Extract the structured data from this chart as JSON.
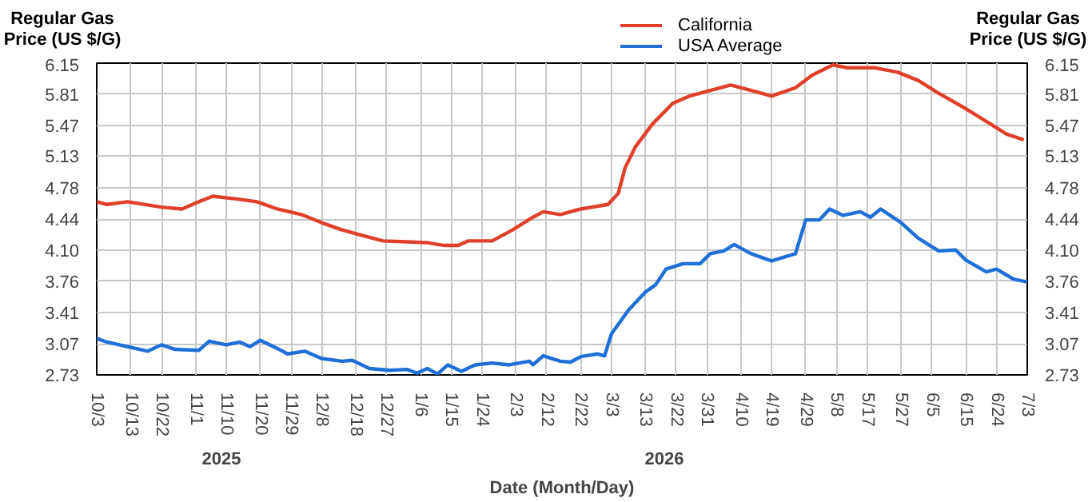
{
  "chart_data": {
    "type": "line",
    "xlabel": "Date (Month/Day)",
    "ylabel": "Regular Gas Price (US $/G)",
    "y2label": "Regular Gas Price (US $/G)",
    "annotations": [
      "2025",
      "2026"
    ],
    "xlim": [
      "2025-10-03",
      "2026-07-03"
    ],
    "xticks": [
      {
        "value": "2025-10-03",
        "label": "10/3"
      },
      {
        "value": "2025-10-13",
        "label": "10/13"
      },
      {
        "value": "2025-10-22",
        "label": "10/22"
      },
      {
        "value": "2025-11-01",
        "label": "11/1"
      },
      {
        "value": "2025-11-10",
        "label": "11/10"
      },
      {
        "value": "2025-11-20",
        "label": "11/20"
      },
      {
        "value": "2025-11-29",
        "label": "11/29"
      },
      {
        "value": "2025-12-08",
        "label": "12/8"
      },
      {
        "value": "2025-12-18",
        "label": "12/18"
      },
      {
        "value": "2025-12-27",
        "label": "12/27"
      },
      {
        "value": "2026-01-06",
        "label": "1/6"
      },
      {
        "value": "2026-01-15",
        "label": "1/15"
      },
      {
        "value": "2026-01-24",
        "label": "1/24"
      },
      {
        "value": "2026-02-03",
        "label": "2/3"
      },
      {
        "value": "2026-02-12",
        "label": "2/12"
      },
      {
        "value": "2026-02-22",
        "label": "2/22"
      },
      {
        "value": "2026-03-03",
        "label": "3/3"
      },
      {
        "value": "2026-03-13",
        "label": "3/13"
      },
      {
        "value": "2026-03-22",
        "label": "3/22"
      },
      {
        "value": "2026-03-31",
        "label": "3/31"
      },
      {
        "value": "2026-04-10",
        "label": "4/10"
      },
      {
        "value": "2026-04-19",
        "label": "4/19"
      },
      {
        "value": "2026-04-29",
        "label": "4/29"
      },
      {
        "value": "2026-05-08",
        "label": "5/8"
      },
      {
        "value": "2026-05-17",
        "label": "5/17"
      },
      {
        "value": "2026-05-27",
        "label": "5/27"
      },
      {
        "value": "2026-06-05",
        "label": "6/5"
      },
      {
        "value": "2026-06-15",
        "label": "6/15"
      },
      {
        "value": "2026-06-24",
        "label": "6/24"
      },
      {
        "value": "2026-07-03",
        "label": "7/3"
      }
    ],
    "ylim": [
      2.73,
      6.15
    ],
    "yticks": [
      2.73,
      3.07,
      3.41,
      3.76,
      {
        "value": 4.1,
        "label": "4.10"
      },
      4.44,
      4.78,
      5.13,
      5.47,
      5.81,
      6.15
    ],
    "y2lim": [
      2.73,
      6.15
    ],
    "y2ticks": [
      2.73,
      3.07,
      3.41,
      3.76,
      {
        "value": 4.1,
        "label": "4.10"
      },
      4.44,
      4.78,
      5.13,
      5.47,
      5.81,
      6.15
    ],
    "grid": true,
    "legend": "top",
    "marker": "none",
    "line_style": "solid",
    "series": [
      {
        "name": "California",
        "color": "#e0402a",
        "x": [
          "2025-10-03",
          "2025-10-06",
          "2025-10-12",
          "2025-10-22",
          "2025-10-28",
          "2025-11-02",
          "2025-11-06",
          "2025-11-13",
          "2025-11-19",
          "2025-11-25",
          "2025-12-02",
          "2025-12-08",
          "2025-12-14",
          "2025-12-20",
          "2025-12-26",
          "2026-01-02",
          "2026-01-08",
          "2026-01-13",
          "2026-01-17",
          "2026-01-20",
          "2026-01-27",
          "2026-02-02",
          "2026-02-08",
          "2026-02-11",
          "2026-02-16",
          "2026-02-22",
          "2026-03-02",
          "2026-03-05",
          "2026-03-07",
          "2026-03-10",
          "2026-03-15",
          "2026-03-21",
          "2026-03-26",
          "2026-04-01",
          "2026-04-07",
          "2026-04-13",
          "2026-04-19",
          "2026-04-26",
          "2026-05-01",
          "2026-05-07",
          "2026-05-11",
          "2026-05-19",
          "2026-05-26",
          "2026-06-01",
          "2026-06-07",
          "2026-06-15",
          "2026-06-21",
          "2026-06-27",
          "2026-07-02"
        ],
        "values": [
          4.63,
          4.6,
          4.63,
          4.57,
          4.55,
          4.63,
          4.69,
          4.66,
          4.63,
          4.55,
          4.49,
          4.4,
          4.32,
          4.26,
          4.2,
          4.19,
          4.18,
          4.15,
          4.15,
          4.2,
          4.2,
          4.32,
          4.46,
          4.52,
          4.49,
          4.55,
          4.6,
          4.72,
          5.0,
          5.23,
          5.48,
          5.71,
          5.79,
          5.85,
          5.91,
          5.85,
          5.79,
          5.88,
          6.02,
          6.13,
          6.1,
          6.1,
          6.05,
          5.96,
          5.82,
          5.65,
          5.51,
          5.37,
          5.31
        ]
      },
      {
        "name": "USA Average",
        "color": "#1f6fd6",
        "x": [
          "2025-10-03",
          "2025-10-06",
          "2025-10-12",
          "2025-10-18",
          "2025-10-22",
          "2025-10-26",
          "2025-11-02",
          "2025-11-05",
          "2025-11-10",
          "2025-11-14",
          "2025-11-17",
          "2025-11-20",
          "2025-11-25",
          "2025-11-28",
          "2025-12-03",
          "2025-12-08",
          "2025-12-14",
          "2025-12-17",
          "2025-12-22",
          "2025-12-28",
          "2026-01-02",
          "2026-01-05",
          "2026-01-08",
          "2026-01-11",
          "2026-01-14",
          "2026-01-18",
          "2026-01-22",
          "2026-01-27",
          "2026-02-01",
          "2026-02-07",
          "2026-02-08",
          "2026-02-11",
          "2026-02-16",
          "2026-02-19",
          "2026-02-22",
          "2026-02-27",
          "2026-03-01",
          "2026-03-03",
          "2026-03-08",
          "2026-03-13",
          "2026-03-16",
          "2026-03-19",
          "2026-03-24",
          "2026-03-29",
          "2026-04-01",
          "2026-04-05",
          "2026-04-08",
          "2026-04-13",
          "2026-04-19",
          "2026-04-26",
          "2026-04-29",
          "2026-05-03",
          "2026-05-06",
          "2026-05-10",
          "2026-05-15",
          "2026-05-18",
          "2026-05-21",
          "2026-05-27",
          "2026-06-01",
          "2026-06-07",
          "2026-06-12",
          "2026-06-15",
          "2026-06-21",
          "2026-06-24",
          "2026-06-29",
          "2026-07-03"
        ],
        "values": [
          3.13,
          3.09,
          3.04,
          2.99,
          3.06,
          3.01,
          3.0,
          3.1,
          3.06,
          3.09,
          3.04,
          3.11,
          3.02,
          2.96,
          2.99,
          2.91,
          2.88,
          2.89,
          2.8,
          2.78,
          2.79,
          2.75,
          2.8,
          2.74,
          2.84,
          2.77,
          2.84,
          2.86,
          2.84,
          2.88,
          2.84,
          2.94,
          2.88,
          2.87,
          2.93,
          2.96,
          2.94,
          3.18,
          3.44,
          3.64,
          3.72,
          3.89,
          3.95,
          3.95,
          4.06,
          4.09,
          4.16,
          4.06,
          3.98,
          4.06,
          4.43,
          4.43,
          4.55,
          4.48,
          4.52,
          4.46,
          4.55,
          4.4,
          4.23,
          4.09,
          4.1,
          3.99,
          3.86,
          3.89,
          3.78,
          3.75
        ]
      }
    ]
  }
}
